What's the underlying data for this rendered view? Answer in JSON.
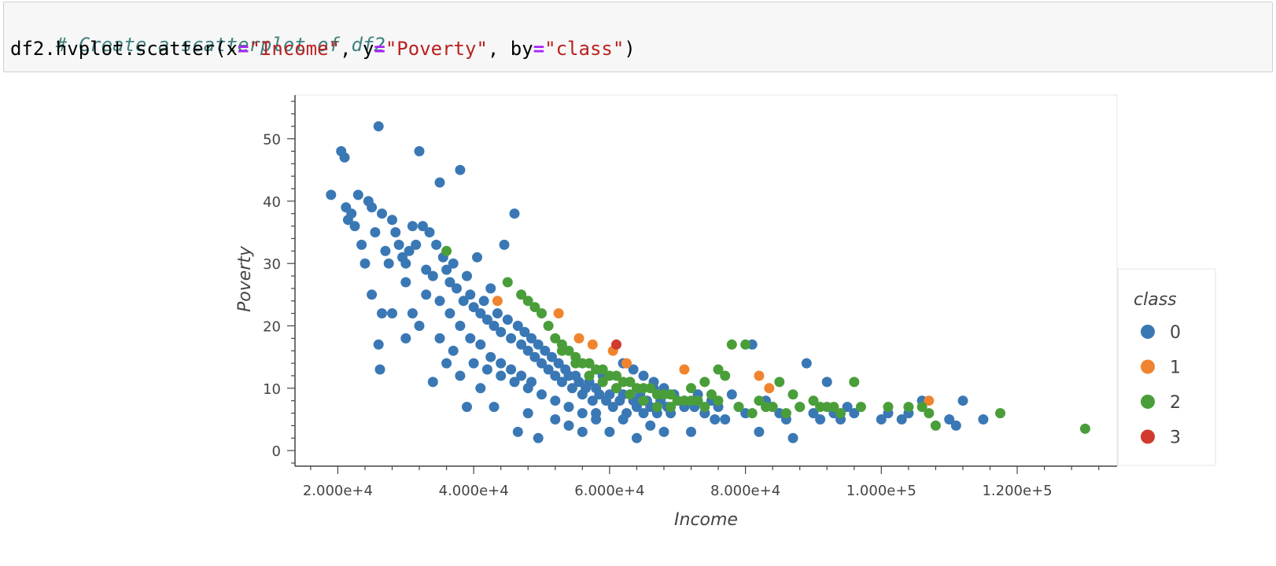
{
  "code_cell": {
    "comment": "# Create a scatterplot of df2",
    "tokens": [
      {
        "t": "df2.hvplot.scatter(x",
        "k": "plain"
      },
      {
        "t": "=",
        "k": "op"
      },
      {
        "t": "\"Income\"",
        "k": "str"
      },
      {
        "t": ", y",
        "k": "plain"
      },
      {
        "t": "=",
        "k": "op"
      },
      {
        "t": "\"Poverty\"",
        "k": "str"
      },
      {
        "t": ", by",
        "k": "plain"
      },
      {
        "t": "=",
        "k": "op"
      },
      {
        "t": "\"class\"",
        "k": "str"
      },
      {
        "t": ")",
        "k": "plain"
      }
    ]
  },
  "chart_data": {
    "type": "scatter",
    "xlabel": "Income",
    "ylabel": "Poverty",
    "xlim": [
      13700,
      134700
    ],
    "ylim": [
      -2.5,
      57
    ],
    "x_ticks": [
      20000,
      40000,
      60000,
      80000,
      100000,
      120000
    ],
    "x_tick_labels": [
      "2.000e+4",
      "4.000e+4",
      "6.000e+4",
      "8.000e+4",
      "1.000e+5",
      "1.200e+5"
    ],
    "y_ticks": [
      0,
      10,
      20,
      30,
      40,
      50
    ],
    "y_tick_labels": [
      "0",
      "10",
      "20",
      "30",
      "40",
      "50"
    ],
    "grid": false,
    "legend": {
      "title": "class",
      "placement": "right"
    },
    "series": [
      {
        "name": "0",
        "color": "#3a78b5",
        "points": [
          [
            19000,
            41
          ],
          [
            20500,
            48
          ],
          [
            21000,
            47
          ],
          [
            21200,
            39
          ],
          [
            21500,
            37
          ],
          [
            22000,
            38
          ],
          [
            22500,
            36
          ],
          [
            23000,
            41
          ],
          [
            23500,
            33
          ],
          [
            24000,
            30
          ],
          [
            24500,
            40
          ],
          [
            25000,
            39
          ],
          [
            25500,
            35
          ],
          [
            26000,
            52
          ],
          [
            26500,
            38
          ],
          [
            27000,
            32
          ],
          [
            27500,
            30
          ],
          [
            28000,
            37
          ],
          [
            28500,
            35
          ],
          [
            29000,
            33
          ],
          [
            29500,
            31
          ],
          [
            30000,
            30
          ],
          [
            30500,
            32
          ],
          [
            31000,
            36
          ],
          [
            31500,
            33
          ],
          [
            32000,
            48
          ],
          [
            32500,
            36
          ],
          [
            33000,
            29
          ],
          [
            33500,
            35
          ],
          [
            34000,
            28
          ],
          [
            34500,
            33
          ],
          [
            35000,
            43
          ],
          [
            35500,
            31
          ],
          [
            36000,
            29
          ],
          [
            36500,
            27
          ],
          [
            37000,
            30
          ],
          [
            37500,
            26
          ],
          [
            38000,
            45
          ],
          [
            38500,
            24
          ],
          [
            39000,
            28
          ],
          [
            39500,
            25
          ],
          [
            40000,
            23
          ],
          [
            40500,
            31
          ],
          [
            41000,
            22
          ],
          [
            41500,
            24
          ],
          [
            42000,
            21
          ],
          [
            42500,
            26
          ],
          [
            43000,
            20
          ],
          [
            43500,
            22
          ],
          [
            44000,
            19
          ],
          [
            44500,
            33
          ],
          [
            45000,
            21
          ],
          [
            45500,
            18
          ],
          [
            46000,
            38
          ],
          [
            46500,
            20
          ],
          [
            47000,
            17
          ],
          [
            47500,
            19
          ],
          [
            48000,
            16
          ],
          [
            48500,
            18
          ],
          [
            49000,
            15
          ],
          [
            49500,
            17
          ],
          [
            50000,
            14
          ],
          [
            50500,
            16
          ],
          [
            51000,
            13
          ],
          [
            51500,
            15
          ],
          [
            52000,
            12
          ],
          [
            52500,
            14
          ],
          [
            53000,
            11
          ],
          [
            53500,
            13
          ],
          [
            54000,
            12
          ],
          [
            54500,
            10
          ],
          [
            55000,
            12
          ],
          [
            55500,
            11
          ],
          [
            56000,
            9
          ],
          [
            56500,
            10
          ],
          [
            57000,
            11
          ],
          [
            57500,
            8
          ],
          [
            58000,
            10
          ],
          [
            58500,
            9
          ],
          [
            59000,
            12
          ],
          [
            59500,
            8
          ],
          [
            60000,
            9
          ],
          [
            60500,
            7
          ],
          [
            61000,
            10
          ],
          [
            61500,
            8
          ],
          [
            62000,
            9
          ],
          [
            62500,
            6
          ],
          [
            63000,
            11
          ],
          [
            63500,
            8
          ],
          [
            64000,
            7
          ],
          [
            64500,
            9
          ],
          [
            65000,
            6
          ],
          [
            65500,
            8
          ],
          [
            66000,
            7
          ],
          [
            66500,
            10
          ],
          [
            67000,
            6
          ],
          [
            67500,
            8
          ],
          [
            68000,
            9
          ],
          [
            68500,
            7
          ],
          [
            69000,
            6
          ],
          [
            70000,
            8
          ],
          [
            71000,
            7
          ],
          [
            72000,
            3
          ],
          [
            73000,
            9
          ],
          [
            74000,
            6
          ],
          [
            75000,
            8
          ],
          [
            76000,
            7
          ],
          [
            77000,
            5
          ],
          [
            78000,
            9
          ],
          [
            79000,
            7
          ],
          [
            80000,
            6
          ],
          [
            81000,
            17
          ],
          [
            82000,
            3
          ],
          [
            83000,
            8
          ],
          [
            84000,
            7
          ],
          [
            85000,
            6
          ],
          [
            86000,
            5
          ],
          [
            87000,
            2
          ],
          [
            88000,
            7
          ],
          [
            89000,
            14
          ],
          [
            90000,
            6
          ],
          [
            91000,
            5
          ],
          [
            92000,
            11
          ],
          [
            93000,
            6
          ],
          [
            94000,
            5
          ],
          [
            95000,
            7
          ],
          [
            96000,
            6
          ],
          [
            100000,
            5
          ],
          [
            101000,
            6
          ],
          [
            103000,
            5
          ],
          [
            104000,
            6
          ],
          [
            106000,
            8
          ],
          [
            110000,
            5
          ],
          [
            111000,
            4
          ],
          [
            112000,
            8
          ],
          [
            115000,
            5
          ],
          [
            25000,
            25
          ],
          [
            26000,
            17
          ],
          [
            26200,
            13
          ],
          [
            26500,
            22
          ],
          [
            30000,
            18
          ],
          [
            31000,
            22
          ],
          [
            33000,
            25
          ],
          [
            34000,
            11
          ],
          [
            36000,
            14
          ],
          [
            38000,
            12
          ],
          [
            39000,
            7
          ],
          [
            41000,
            10
          ],
          [
            43000,
            7
          ],
          [
            46500,
            3
          ],
          [
            48000,
            6
          ],
          [
            49500,
            2
          ],
          [
            52000,
            5
          ],
          [
            54000,
            4
          ],
          [
            56000,
            3
          ],
          [
            58000,
            5
          ],
          [
            60000,
            3
          ],
          [
            62000,
            5
          ],
          [
            64000,
            2
          ],
          [
            66000,
            4
          ],
          [
            68000,
            3
          ],
          [
            30000,
            27
          ],
          [
            28000,
            22
          ],
          [
            32000,
            20
          ],
          [
            35000,
            18
          ],
          [
            37000,
            16
          ],
          [
            40000,
            14
          ],
          [
            42000,
            13
          ],
          [
            44000,
            12
          ],
          [
            46000,
            11
          ],
          [
            48000,
            10
          ],
          [
            50000,
            9
          ],
          [
            52000,
            8
          ],
          [
            54000,
            7
          ],
          [
            56000,
            6
          ],
          [
            58000,
            6
          ],
          [
            35000,
            24
          ],
          [
            36500,
            22
          ],
          [
            38000,
            20
          ],
          [
            39500,
            18
          ],
          [
            41000,
            17
          ],
          [
            42500,
            15
          ],
          [
            44000,
            14
          ],
          [
            45500,
            13
          ],
          [
            47000,
            12
          ],
          [
            48500,
            11
          ],
          [
            62000,
            14
          ],
          [
            63500,
            13
          ],
          [
            65000,
            12
          ],
          [
            66500,
            11
          ],
          [
            68000,
            10
          ],
          [
            69500,
            9
          ],
          [
            71000,
            8
          ],
          [
            72500,
            7
          ],
          [
            74000,
            6
          ],
          [
            75500,
            5
          ]
        ]
      },
      {
        "name": "1",
        "color": "#f0842e",
        "points": [
          [
            43500,
            24
          ],
          [
            52500,
            22
          ],
          [
            55500,
            18
          ],
          [
            57500,
            17
          ],
          [
            60500,
            16
          ],
          [
            62500,
            14
          ],
          [
            71000,
            13
          ],
          [
            82000,
            12
          ],
          [
            83500,
            10
          ],
          [
            107000,
            8
          ]
        ]
      },
      {
        "name": "2",
        "color": "#4a9e3a",
        "points": [
          [
            36000,
            32
          ],
          [
            45000,
            27
          ],
          [
            47000,
            25
          ],
          [
            48000,
            24
          ],
          [
            49000,
            23
          ],
          [
            50000,
            22
          ],
          [
            51000,
            20
          ],
          [
            52000,
            18
          ],
          [
            53000,
            17
          ],
          [
            54000,
            16
          ],
          [
            55000,
            15
          ],
          [
            56000,
            14
          ],
          [
            57000,
            14
          ],
          [
            58000,
            13
          ],
          [
            59000,
            13
          ],
          [
            60000,
            12
          ],
          [
            61000,
            12
          ],
          [
            62000,
            11
          ],
          [
            63000,
            11
          ],
          [
            64000,
            10
          ],
          [
            65000,
            10
          ],
          [
            66000,
            10
          ],
          [
            67000,
            9
          ],
          [
            68000,
            9
          ],
          [
            69000,
            9
          ],
          [
            70000,
            8
          ],
          [
            71000,
            8
          ],
          [
            72000,
            8
          ],
          [
            73000,
            8
          ],
          [
            74000,
            7
          ],
          [
            75000,
            9
          ],
          [
            76000,
            13
          ],
          [
            77000,
            12
          ],
          [
            78000,
            17
          ],
          [
            79000,
            7
          ],
          [
            80000,
            17
          ],
          [
            81000,
            6
          ],
          [
            82000,
            8
          ],
          [
            83000,
            7
          ],
          [
            84000,
            7
          ],
          [
            85000,
            11
          ],
          [
            86000,
            6
          ],
          [
            87000,
            9
          ],
          [
            88000,
            7
          ],
          [
            90000,
            8
          ],
          [
            91000,
            7
          ],
          [
            92000,
            7
          ],
          [
            93000,
            7
          ],
          [
            94000,
            6
          ],
          [
            96000,
            11
          ],
          [
            97000,
            7
          ],
          [
            101000,
            7
          ],
          [
            104000,
            7
          ],
          [
            106000,
            7
          ],
          [
            107000,
            6
          ],
          [
            108000,
            4
          ],
          [
            117500,
            6
          ],
          [
            130000,
            3.5
          ],
          [
            53000,
            16
          ],
          [
            55000,
            14
          ],
          [
            57000,
            12
          ],
          [
            59000,
            11
          ],
          [
            61000,
            10
          ],
          [
            63000,
            9
          ],
          [
            65000,
            8
          ],
          [
            67000,
            7
          ],
          [
            69000,
            7
          ],
          [
            72000,
            10
          ],
          [
            74000,
            11
          ],
          [
            76000,
            8
          ]
        ]
      },
      {
        "name": "3",
        "color": "#d03b2e",
        "points": [
          [
            61000,
            17
          ]
        ]
      }
    ]
  }
}
